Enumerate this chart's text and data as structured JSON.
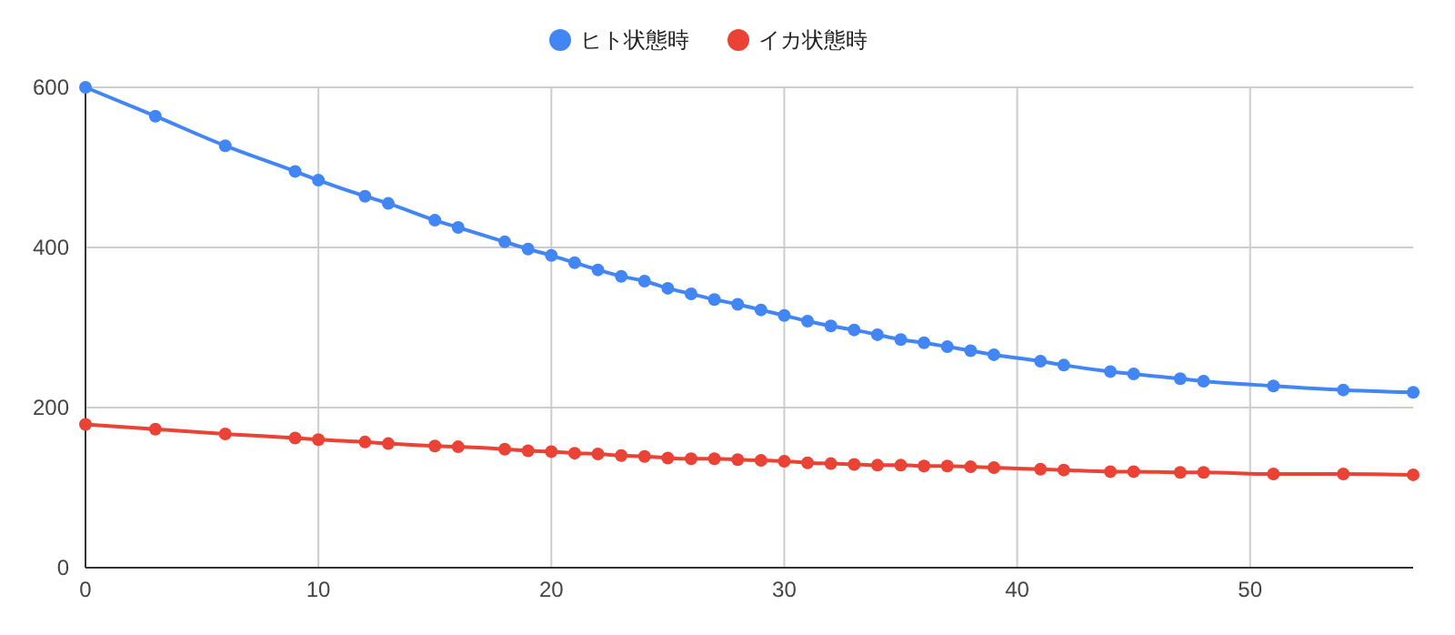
{
  "chart_data": {
    "type": "line",
    "x": [
      0,
      3,
      6,
      9,
      10,
      12,
      13,
      15,
      16,
      18,
      19,
      20,
      21,
      22,
      23,
      24,
      25,
      26,
      27,
      28,
      29,
      30,
      31,
      32,
      33,
      34,
      35,
      36,
      37,
      38,
      39,
      41,
      42,
      44,
      45,
      47,
      48,
      51,
      54,
      57
    ],
    "series": [
      {
        "name": "ヒト状態時",
        "color": "#4285f4",
        "values": [
          600,
          564,
          527,
          495,
          484,
          464,
          455,
          434,
          425,
          407,
          398,
          390,
          381,
          372,
          364,
          358,
          349,
          342,
          335,
          329,
          322,
          315,
          308,
          302,
          297,
          291,
          285,
          281,
          276,
          271,
          266,
          258,
          253,
          245,
          242,
          236,
          233,
          227,
          222,
          219
        ]
      },
      {
        "name": "イカ状態時",
        "color": "#ea4335",
        "values": [
          179,
          173,
          167,
          162,
          160,
          157,
          155,
          152,
          151,
          148,
          146,
          145,
          143,
          142,
          140,
          139,
          137,
          136,
          136,
          135,
          134,
          133,
          131,
          130,
          129,
          128,
          128,
          127,
          127,
          126,
          125,
          123,
          122,
          120,
          120,
          119,
          119,
          117,
          117,
          116
        ]
      }
    ],
    "xlim": [
      0,
      57
    ],
    "xticks": [
      0,
      10,
      20,
      30,
      40,
      50
    ],
    "ylim": [
      0,
      600
    ],
    "yticks": [
      0,
      200,
      400,
      600
    ],
    "grid": true,
    "legend": "top",
    "marker": "circle",
    "line_style": "solid"
  }
}
